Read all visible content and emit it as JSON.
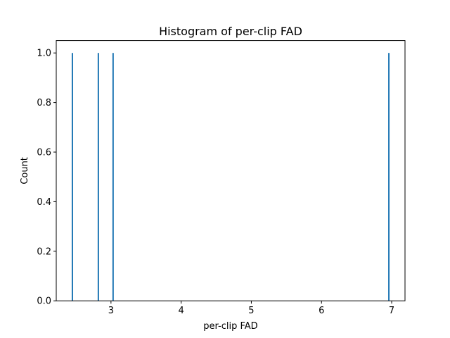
{
  "chart_data": {
    "type": "bar",
    "title": "Histogram of per-clip FAD",
    "xlabel": "per-clip FAD",
    "ylabel": "Count",
    "xlim": [
      2.22,
      7.19
    ],
    "ylim": [
      0,
      1.05
    ],
    "xticks": [
      3,
      4,
      5,
      6,
      7
    ],
    "yticks": [
      0.0,
      0.2,
      0.4,
      0.6,
      0.8,
      1.0
    ],
    "xtick_labels": [
      "3",
      "4",
      "5",
      "6",
      "7"
    ],
    "ytick_labels": [
      "0.0",
      "0.2",
      "0.4",
      "0.6",
      "0.8",
      "1.0"
    ],
    "bin_width": 0.02,
    "bars": [
      {
        "x": 2.45,
        "count": 1
      },
      {
        "x": 2.82,
        "count": 1
      },
      {
        "x": 3.03,
        "count": 1
      },
      {
        "x": 6.96,
        "count": 1
      }
    ],
    "bar_color": "#1f77b4",
    "grid": false,
    "legend": "none"
  }
}
